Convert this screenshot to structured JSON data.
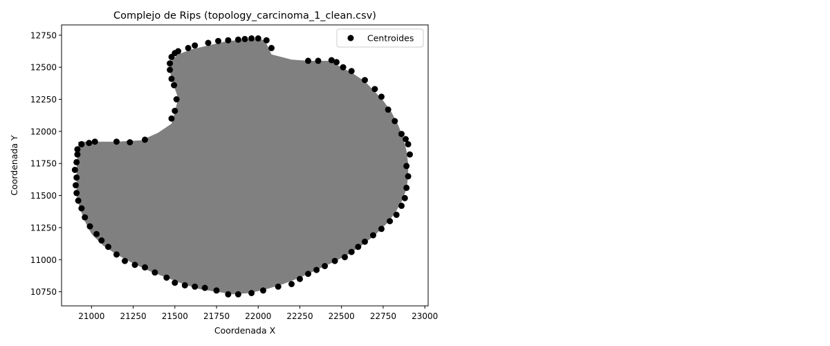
{
  "chart_data": {
    "type": "scatter",
    "title": "Complejo de Rips (topology_carcinoma_1_clean.csv)",
    "xlabel": "Coordenada X",
    "ylabel": "Coordenada Y",
    "xlim": [
      20820,
      23020
    ],
    "ylim": [
      10640,
      12830
    ],
    "xticks": [
      21000,
      21250,
      21500,
      21750,
      22000,
      22250,
      22500,
      22750,
      23000
    ],
    "yticks": [
      10750,
      11000,
      11250,
      11500,
      11750,
      12000,
      12250,
      12500,
      12750
    ],
    "grid": false,
    "legend": {
      "placement": "top-right",
      "entries": [
        "Centroides"
      ]
    },
    "colors": {
      "points": "#000000",
      "complex_fill": "#808080"
    },
    "complex_outline": [
      [
        20920,
        11920
      ],
      [
        21150,
        11920
      ],
      [
        21300,
        11930
      ],
      [
        21400,
        11990
      ],
      [
        21480,
        12060
      ],
      [
        21500,
        12150
      ],
      [
        21520,
        12260
      ],
      [
        21490,
        12370
      ],
      [
        21470,
        12470
      ],
      [
        21470,
        12540
      ],
      [
        21520,
        12600
      ],
      [
        21600,
        12640
      ],
      [
        21700,
        12670
      ],
      [
        21800,
        12700
      ],
      [
        21900,
        12715
      ],
      [
        22000,
        12720
      ],
      [
        22040,
        12710
      ],
      [
        22080,
        12600
      ],
      [
        22200,
        12560
      ],
      [
        22300,
        12550
      ],
      [
        22430,
        12550
      ],
      [
        22500,
        12500
      ],
      [
        22570,
        12450
      ],
      [
        22640,
        12390
      ],
      [
        22700,
        12310
      ],
      [
        22750,
        12240
      ],
      [
        22800,
        12150
      ],
      [
        22840,
        12050
      ],
      [
        22870,
        11950
      ],
      [
        22890,
        11850
      ],
      [
        22900,
        11750
      ],
      [
        22900,
        11650
      ],
      [
        22890,
        11550
      ],
      [
        22860,
        11450
      ],
      [
        22820,
        11360
      ],
      [
        22770,
        11280
      ],
      [
        22700,
        11190
      ],
      [
        22620,
        11110
      ],
      [
        22540,
        11040
      ],
      [
        22450,
        10980
      ],
      [
        22350,
        10920
      ],
      [
        22250,
        10860
      ],
      [
        22150,
        10810
      ],
      [
        22050,
        10770
      ],
      [
        21950,
        10740
      ],
      [
        21850,
        10730
      ],
      [
        21750,
        10750
      ],
      [
        21650,
        10770
      ],
      [
        21550,
        10810
      ],
      [
        21450,
        10860
      ],
      [
        21350,
        10910
      ],
      [
        21250,
        10970
      ],
      [
        21150,
        11040
      ],
      [
        21070,
        11110
      ],
      [
        21000,
        11200
      ],
      [
        20960,
        11300
      ],
      [
        20930,
        11400
      ],
      [
        20910,
        11500
      ],
      [
        20910,
        11600
      ],
      [
        20910,
        11700
      ],
      [
        20915,
        11800
      ],
      [
        20920,
        11880
      ]
    ],
    "points": [
      [
        20940,
        11900
      ],
      [
        20985,
        11910
      ],
      [
        21020,
        11920
      ],
      [
        21150,
        11920
      ],
      [
        21230,
        11915
      ],
      [
        21320,
        11935
      ],
      [
        21480,
        12100
      ],
      [
        21500,
        12160
      ],
      [
        21510,
        12250
      ],
      [
        21495,
        12360
      ],
      [
        21480,
        12410
      ],
      [
        21470,
        12480
      ],
      [
        21470,
        12530
      ],
      [
        21480,
        12580
      ],
      [
        21500,
        12610
      ],
      [
        21520,
        12625
      ],
      [
        21580,
        12650
      ],
      [
        21620,
        12670
      ],
      [
        21700,
        12690
      ],
      [
        21760,
        12705
      ],
      [
        21820,
        12710
      ],
      [
        21880,
        12715
      ],
      [
        21920,
        12720
      ],
      [
        21960,
        12725
      ],
      [
        22000,
        12725
      ],
      [
        22050,
        12710
      ],
      [
        22080,
        12650
      ],
      [
        22300,
        12550
      ],
      [
        22360,
        12550
      ],
      [
        22440,
        12555
      ],
      [
        22470,
        12540
      ],
      [
        22510,
        12500
      ],
      [
        22560,
        12470
      ],
      [
        22640,
        12400
      ],
      [
        22700,
        12330
      ],
      [
        22740,
        12270
      ],
      [
        22780,
        12170
      ],
      [
        22820,
        12080
      ],
      [
        22860,
        11980
      ],
      [
        22885,
        11940
      ],
      [
        22900,
        11900
      ],
      [
        22910,
        11820
      ],
      [
        22890,
        11730
      ],
      [
        22900,
        11650
      ],
      [
        22890,
        11560
      ],
      [
        22880,
        11480
      ],
      [
        22860,
        11420
      ],
      [
        22830,
        11350
      ],
      [
        22790,
        11300
      ],
      [
        22740,
        11240
      ],
      [
        22690,
        11190
      ],
      [
        22640,
        11140
      ],
      [
        22600,
        11100
      ],
      [
        22560,
        11060
      ],
      [
        22520,
        11020
      ],
      [
        22460,
        10990
      ],
      [
        22400,
        10950
      ],
      [
        22350,
        10920
      ],
      [
        22300,
        10890
      ],
      [
        22250,
        10850
      ],
      [
        22200,
        10810
      ],
      [
        22120,
        10790
      ],
      [
        22030,
        10760
      ],
      [
        21960,
        10740
      ],
      [
        21880,
        10730
      ],
      [
        21820,
        10730
      ],
      [
        21750,
        10760
      ],
      [
        21680,
        10780
      ],
      [
        21620,
        10790
      ],
      [
        21560,
        10800
      ],
      [
        21500,
        10820
      ],
      [
        21450,
        10860
      ],
      [
        21380,
        10900
      ],
      [
        21320,
        10940
      ],
      [
        21260,
        10960
      ],
      [
        21200,
        10990
      ],
      [
        21150,
        11040
      ],
      [
        21100,
        11100
      ],
      [
        21060,
        11150
      ],
      [
        21030,
        11200
      ],
      [
        20990,
        11260
      ],
      [
        20960,
        11330
      ],
      [
        20940,
        11400
      ],
      [
        20920,
        11460
      ],
      [
        20910,
        11520
      ],
      [
        20905,
        11580
      ],
      [
        20910,
        11640
      ],
      [
        20900,
        11700
      ],
      [
        20910,
        11760
      ],
      [
        20915,
        11820
      ],
      [
        20915,
        11860
      ]
    ]
  }
}
